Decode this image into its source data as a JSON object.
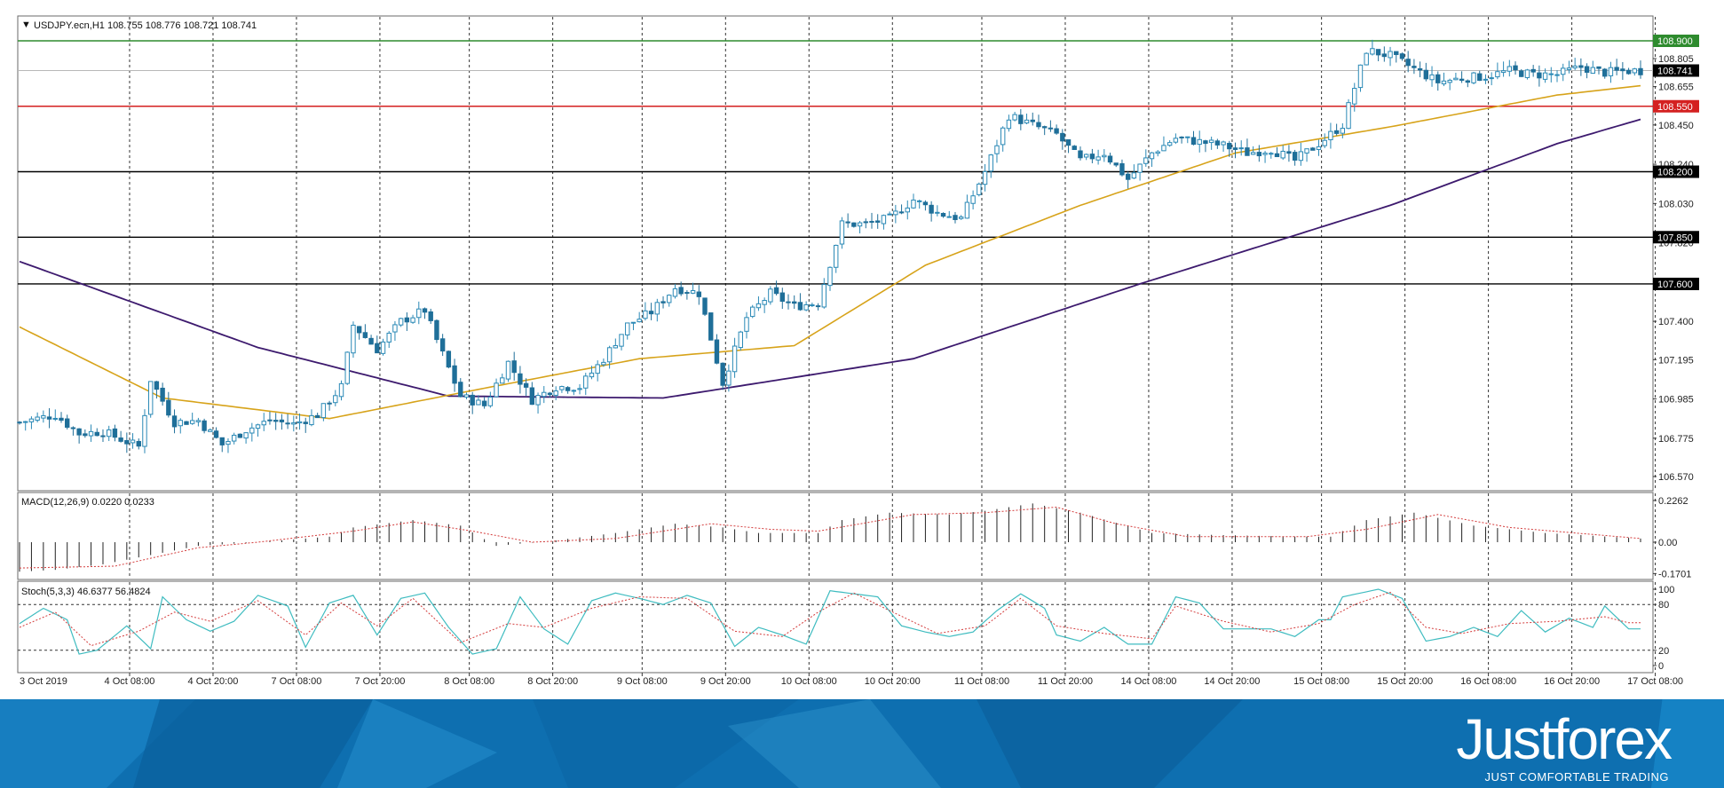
{
  "colors": {
    "bull": "#2a89b6",
    "bear": "#1f6f99",
    "ma_fast": "#d7a31a",
    "ma_slow": "#3d1a6e",
    "macd_signal": "#d43c3c",
    "stoch_main": "#3fbcc0",
    "stoch_signal": "#d43c3c",
    "res_green": "#2e8b2e",
    "res_red": "#d42020",
    "level_black": "#000000",
    "brand_bg": "#0e6fb0"
  },
  "brand": {
    "name": "Justforex",
    "tagline": "JUST COMFORTABLE TRADING"
  },
  "chart_data": [
    {
      "type": "candlestick",
      "title": "USDJPY.ecn,H1  108.755 108.776 108.721 108.741",
      "ylim": [
        106.5,
        108.98
      ],
      "y_ticks": [
        "108.805",
        "108.655",
        "108.450",
        "108.240",
        "108.030",
        "107.820",
        "107.400",
        "107.195",
        "106.985",
        "106.775",
        "106.570"
      ],
      "x_ticks": [
        "3 Oct 2019",
        "4 Oct 08:00",
        "4 Oct 20:00",
        "7 Oct 08:00",
        "7 Oct 20:00",
        "8 Oct 08:00",
        "8 Oct 20:00",
        "9 Oct 08:00",
        "9 Oct 20:00",
        "10 Oct 08:00",
        "10 Oct 20:00",
        "11 Oct 08:00",
        "11 Oct 20:00",
        "14 Oct 08:00",
        "14 Oct 20:00",
        "15 Oct 08:00",
        "15 Oct 20:00",
        "16 Oct 08:00",
        "16 Oct 20:00",
        "17 Oct 08:00"
      ],
      "current_price": {
        "label": "108.741",
        "value": 108.741
      },
      "levels": [
        {
          "label": "108.900",
          "value": 108.9,
          "color": "#2e8b2e"
        },
        {
          "label": "108.550",
          "value": 108.55,
          "color": "#d42020"
        },
        {
          "label": "108.200",
          "value": 108.2,
          "color": "#000000"
        },
        {
          "label": "107.850",
          "value": 107.85,
          "color": "#000000"
        },
        {
          "label": "107.600",
          "value": 107.6,
          "color": "#000000"
        }
      ],
      "close_anchors": [
        [
          0,
          106.86
        ],
        [
          6,
          106.9
        ],
        [
          10,
          106.8
        ],
        [
          14,
          106.81
        ],
        [
          20,
          106.73
        ],
        [
          22,
          107.09
        ],
        [
          26,
          106.86
        ],
        [
          30,
          106.87
        ],
        [
          34,
          106.74
        ],
        [
          38,
          106.82
        ],
        [
          42,
          106.87
        ],
        [
          46,
          106.85
        ],
        [
          50,
          106.9
        ],
        [
          54,
          107.05
        ],
        [
          56,
          107.38
        ],
        [
          60,
          107.25
        ],
        [
          64,
          107.4
        ],
        [
          68,
          107.46
        ],
        [
          70,
          107.3
        ],
        [
          74,
          107.0
        ],
        [
          78,
          106.95
        ],
        [
          82,
          107.18
        ],
        [
          86,
          106.98
        ],
        [
          90,
          107.05
        ],
        [
          94,
          107.05
        ],
        [
          98,
          107.2
        ],
        [
          102,
          107.38
        ],
        [
          106,
          107.45
        ],
        [
          110,
          107.58
        ],
        [
          114,
          107.55
        ],
        [
          118,
          107.07
        ],
        [
          122,
          107.42
        ],
        [
          126,
          107.55
        ],
        [
          130,
          107.48
        ],
        [
          134,
          107.5
        ],
        [
          138,
          107.92
        ],
        [
          142,
          107.92
        ],
        [
          146,
          107.95
        ],
        [
          150,
          108.05
        ],
        [
          154,
          107.98
        ],
        [
          158,
          107.95
        ],
        [
          162,
          108.2
        ],
        [
          166,
          108.5
        ],
        [
          170,
          108.45
        ],
        [
          174,
          108.4
        ],
        [
          178,
          108.26
        ],
        [
          182,
          108.3
        ],
        [
          186,
          108.16
        ],
        [
          190,
          108.3
        ],
        [
          194,
          108.38
        ],
        [
          198,
          108.36
        ],
        [
          202,
          108.34
        ],
        [
          206,
          108.3
        ],
        [
          210,
          108.32
        ],
        [
          214,
          108.26
        ],
        [
          218,
          108.35
        ],
        [
          222,
          108.45
        ],
        [
          226,
          108.85
        ],
        [
          230,
          108.82
        ],
        [
          234,
          108.75
        ],
        [
          238,
          108.68
        ],
        [
          242,
          108.7
        ],
        [
          246,
          108.71
        ],
        [
          250,
          108.74
        ],
        [
          254,
          108.72
        ],
        [
          258,
          108.72
        ],
        [
          262,
          108.76
        ],
        [
          266,
          108.73
        ],
        [
          270,
          108.74
        ]
      ],
      "ma_fast": [
        [
          0,
          107.37
        ],
        [
          24,
          106.99
        ],
        [
          52,
          106.88
        ],
        [
          76,
          107.03
        ],
        [
          104,
          107.2
        ],
        [
          130,
          107.27
        ],
        [
          152,
          107.7
        ],
        [
          178,
          108.02
        ],
        [
          204,
          108.3
        ],
        [
          230,
          108.44
        ],
        [
          258,
          108.61
        ],
        [
          272,
          108.66
        ]
      ],
      "ma_slow": [
        [
          0,
          107.72
        ],
        [
          40,
          107.26
        ],
        [
          72,
          107.0
        ],
        [
          108,
          106.99
        ],
        [
          150,
          107.2
        ],
        [
          188,
          107.6
        ],
        [
          230,
          108.02
        ],
        [
          258,
          108.35
        ],
        [
          272,
          108.48
        ]
      ]
    },
    {
      "type": "bar",
      "title": "MACD(12,26,9) 0.0220 0.0233",
      "ylim": [
        -0.1701,
        0.2262
      ],
      "y_ticks": [
        "0.2262",
        "0.00",
        "-0.1701"
      ],
      "hist_anchors": [
        [
          0,
          -0.16
        ],
        [
          6,
          -0.15
        ],
        [
          14,
          -0.12
        ],
        [
          22,
          -0.07
        ],
        [
          30,
          -0.02
        ],
        [
          40,
          0.0
        ],
        [
          52,
          0.03
        ],
        [
          56,
          0.08
        ],
        [
          66,
          0.12
        ],
        [
          74,
          0.09
        ],
        [
          80,
          -0.02
        ],
        [
          90,
          0.01
        ],
        [
          100,
          0.05
        ],
        [
          110,
          0.1
        ],
        [
          118,
          0.08
        ],
        [
          124,
          0.05
        ],
        [
          134,
          0.05
        ],
        [
          138,
          0.12
        ],
        [
          146,
          0.16
        ],
        [
          156,
          0.15
        ],
        [
          162,
          0.17
        ],
        [
          170,
          0.21
        ],
        [
          178,
          0.16
        ],
        [
          190,
          0.05
        ],
        [
          200,
          0.04
        ],
        [
          214,
          0.03
        ],
        [
          220,
          0.03
        ],
        [
          226,
          0.12
        ],
        [
          234,
          0.16
        ],
        [
          244,
          0.09
        ],
        [
          256,
          0.05
        ],
        [
          272,
          0.02
        ]
      ],
      "signal_anchors": [
        [
          0,
          -0.14
        ],
        [
          16,
          -0.13
        ],
        [
          30,
          -0.03
        ],
        [
          40,
          0.0
        ],
        [
          56,
          0.06
        ],
        [
          66,
          0.11
        ],
        [
          76,
          0.06
        ],
        [
          86,
          0.0
        ],
        [
          100,
          0.02
        ],
        [
          116,
          0.1
        ],
        [
          126,
          0.07
        ],
        [
          134,
          0.06
        ],
        [
          150,
          0.15
        ],
        [
          162,
          0.16
        ],
        [
          174,
          0.19
        ],
        [
          184,
          0.1
        ],
        [
          196,
          0.03
        ],
        [
          216,
          0.03
        ],
        [
          226,
          0.07
        ],
        [
          238,
          0.15
        ],
        [
          250,
          0.08
        ],
        [
          272,
          0.02
        ]
      ]
    },
    {
      "type": "line",
      "title": "Stoch(5,3,3) 46.6377 56.4824",
      "ylim": [
        0,
        100
      ],
      "y_ticks": [
        "100",
        "80",
        "20",
        "0"
      ],
      "k_anchors": [
        [
          0,
          55
        ],
        [
          4,
          75
        ],
        [
          8,
          60
        ],
        [
          10,
          15
        ],
        [
          13,
          20
        ],
        [
          18,
          52
        ],
        [
          22,
          22
        ],
        [
          24,
          90
        ],
        [
          28,
          60
        ],
        [
          32,
          45
        ],
        [
          36,
          58
        ],
        [
          40,
          92
        ],
        [
          45,
          78
        ],
        [
          48,
          24
        ],
        [
          52,
          82
        ],
        [
          56,
          92
        ],
        [
          60,
          40
        ],
        [
          64,
          88
        ],
        [
          68,
          95
        ],
        [
          72,
          50
        ],
        [
          76,
          15
        ],
        [
          80,
          22
        ],
        [
          84,
          90
        ],
        [
          88,
          48
        ],
        [
          92,
          28
        ],
        [
          96,
          85
        ],
        [
          100,
          95
        ],
        [
          104,
          88
        ],
        [
          108,
          80
        ],
        [
          112,
          92
        ],
        [
          116,
          82
        ],
        [
          120,
          25
        ],
        [
          124,
          50
        ],
        [
          128,
          40
        ],
        [
          132,
          28
        ],
        [
          136,
          98
        ],
        [
          140,
          94
        ],
        [
          144,
          90
        ],
        [
          148,
          52
        ],
        [
          152,
          44
        ],
        [
          156,
          38
        ],
        [
          160,
          44
        ],
        [
          164,
          72
        ],
        [
          168,
          94
        ],
        [
          172,
          75
        ],
        [
          174,
          40
        ],
        [
          178,
          32
        ],
        [
          182,
          50
        ],
        [
          186,
          28
        ],
        [
          190,
          28
        ],
        [
          194,
          90
        ],
        [
          198,
          82
        ],
        [
          202,
          48
        ],
        [
          206,
          48
        ],
        [
          210,
          48
        ],
        [
          214,
          38
        ],
        [
          218,
          60
        ],
        [
          220,
          60
        ],
        [
          222,
          90
        ],
        [
          228,
          100
        ],
        [
          232,
          88
        ],
        [
          236,
          32
        ],
        [
          240,
          38
        ],
        [
          244,
          50
        ],
        [
          248,
          38
        ],
        [
          252,
          72
        ],
        [
          256,
          44
        ],
        [
          260,
          62
        ],
        [
          264,
          50
        ],
        [
          266,
          78
        ],
        [
          270,
          48
        ]
      ],
      "d_anchors": [
        [
          0,
          50
        ],
        [
          6,
          70
        ],
        [
          12,
          26
        ],
        [
          20,
          45
        ],
        [
          26,
          70
        ],
        [
          32,
          58
        ],
        [
          40,
          85
        ],
        [
          48,
          40
        ],
        [
          54,
          82
        ],
        [
          60,
          52
        ],
        [
          66,
          88
        ],
        [
          74,
          30
        ],
        [
          82,
          55
        ],
        [
          88,
          50
        ],
        [
          96,
          75
        ],
        [
          104,
          90
        ],
        [
          112,
          88
        ],
        [
          120,
          45
        ],
        [
          128,
          38
        ],
        [
          134,
          70
        ],
        [
          140,
          95
        ],
        [
          146,
          72
        ],
        [
          154,
          42
        ],
        [
          162,
          52
        ],
        [
          168,
          88
        ],
        [
          174,
          52
        ],
        [
          182,
          42
        ],
        [
          190,
          35
        ],
        [
          194,
          78
        ],
        [
          202,
          58
        ],
        [
          210,
          44
        ],
        [
          218,
          55
        ],
        [
          224,
          80
        ],
        [
          230,
          96
        ],
        [
          236,
          50
        ],
        [
          242,
          42
        ],
        [
          250,
          55
        ],
        [
          258,
          58
        ],
        [
          266,
          64
        ],
        [
          270,
          56
        ]
      ]
    }
  ]
}
